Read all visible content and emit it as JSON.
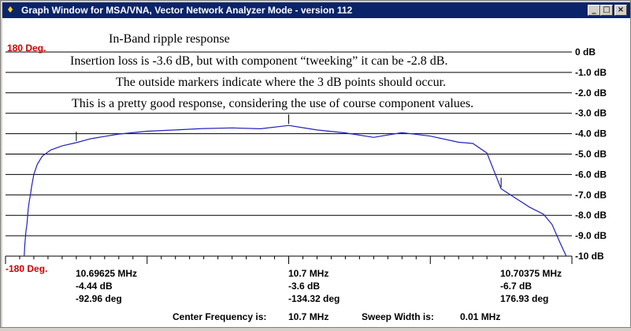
{
  "window": {
    "title": "Graph Window for MSA/VNA, Vector Network Analyzer Mode - version 112",
    "app_icon": "app-icon",
    "min_glyph": "_",
    "max_glyph": "□",
    "close_glyph": "×"
  },
  "annotations": [
    "In-Band ripple response",
    "Insertion loss is -3.6 dB, but with component “tweeking” it can be -2.8 dB.",
    "The outside markers indicate where the 3 dB points should occur.",
    "This is a pretty good response, considering the use of course component values."
  ],
  "phase_axis": {
    "top_label": "180 Deg.",
    "bottom_label": "-180 Deg.",
    "color": "#cc0000"
  },
  "markers": [
    {
      "freq": "10.69625 MHz",
      "mag": "-4.44 dB",
      "phase": "-92.96 deg"
    },
    {
      "freq": "10.7 MHz",
      "mag": "-3.6 dB",
      "phase": "-134.32 deg"
    },
    {
      "freq": "10.70375 MHz",
      "mag": "-6.7 dB",
      "phase": "176.93 deg"
    }
  ],
  "footer": {
    "center_label": "Center Frequency is:",
    "center_value": "10.7 MHz",
    "sweep_label": "Sweep Width is:",
    "sweep_value": "0.01 MHz"
  },
  "chart_data": {
    "type": "line",
    "ylabel": "",
    "xlabel": "",
    "y_ticks": [
      "0 dB",
      "-1.0 dB",
      "-2.0 dB",
      "-3.0 dB",
      "-4.0 dB",
      "-5.0 dB",
      "-6.0 dB",
      "-7.0 dB",
      "-8.0 dB",
      "-9.0 dB",
      "-10 dB"
    ],
    "ylim": [
      -10,
      0
    ],
    "xlim": [
      10.695,
      10.705
    ],
    "x_unit": "MHz",
    "grid": true,
    "line_color": "#2020c0",
    "series": [
      {
        "x": [
          10.69533,
          10.69534,
          10.69536,
          10.69538,
          10.6954,
          10.69542,
          10.69544,
          10.69546,
          10.6955,
          10.69556,
          10.69565,
          10.6958,
          10.696,
          10.69625,
          10.6965,
          10.697,
          10.6975,
          10.698,
          10.6985,
          10.699,
          10.6995,
          10.7,
          10.7005,
          10.701,
          10.7015,
          10.702,
          10.7025,
          10.703,
          10.70325,
          10.7035,
          10.70375,
          10.704,
          10.70425,
          10.7045,
          10.70465,
          10.7048,
          10.7049
        ],
        "y": [
          -10.0,
          -9.5,
          -8.8,
          -8.4,
          -7.7,
          -7.3,
          -7.0,
          -6.6,
          -6.0,
          -5.5,
          -5.1,
          -4.8,
          -4.6,
          -4.44,
          -4.25,
          -4.02,
          -3.88,
          -3.82,
          -3.75,
          -3.72,
          -3.76,
          -3.6,
          -3.82,
          -3.96,
          -4.18,
          -3.95,
          -4.12,
          -4.42,
          -4.48,
          -4.95,
          -6.7,
          -7.15,
          -7.6,
          -7.95,
          -8.45,
          -9.4,
          -10.0
        ]
      }
    ]
  }
}
